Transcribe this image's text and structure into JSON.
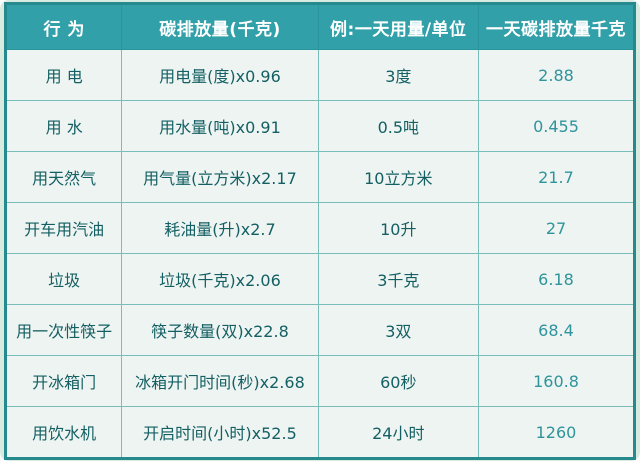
{
  "theme": {
    "header_bg": "#31a0a9",
    "header_text": "#ffffff",
    "frame_bg": "#d8ebe0",
    "table_border": "#26898d",
    "cell_bg": "#eef4f1",
    "grid_line": "#7abcb8",
    "cell_text": "#135f63",
    "number_text": "#2f949b"
  },
  "chart_data": {
    "type": "table",
    "columns": [
      "行 为",
      "碳排放量(千克)",
      "例:一天用量/单位",
      "一天碳排放量千克"
    ],
    "rows": [
      [
        "用 电",
        "用电量(度)x0.96",
        "3度",
        "2.88"
      ],
      [
        "用 水",
        "用水量(吨)x0.91",
        "0.5吨",
        "0.455"
      ],
      [
        "用天然气",
        "用气量(立方米)x2.17",
        "10立方米",
        "21.7"
      ],
      [
        "开车用汽油",
        "耗油量(升)x2.7",
        "10升",
        "27"
      ],
      [
        "垃圾",
        "垃圾(千克)x2.06",
        "3千克",
        "6.18"
      ],
      [
        "用一次性筷子",
        "筷子数量(双)x22.8",
        "3双",
        "68.4"
      ],
      [
        "开冰箱门",
        "冰箱开门时间(秒)x2.68",
        "60秒",
        "160.8"
      ],
      [
        "用饮水机",
        "开启时间(小时)x52.5",
        "24小时",
        "1260"
      ]
    ]
  }
}
